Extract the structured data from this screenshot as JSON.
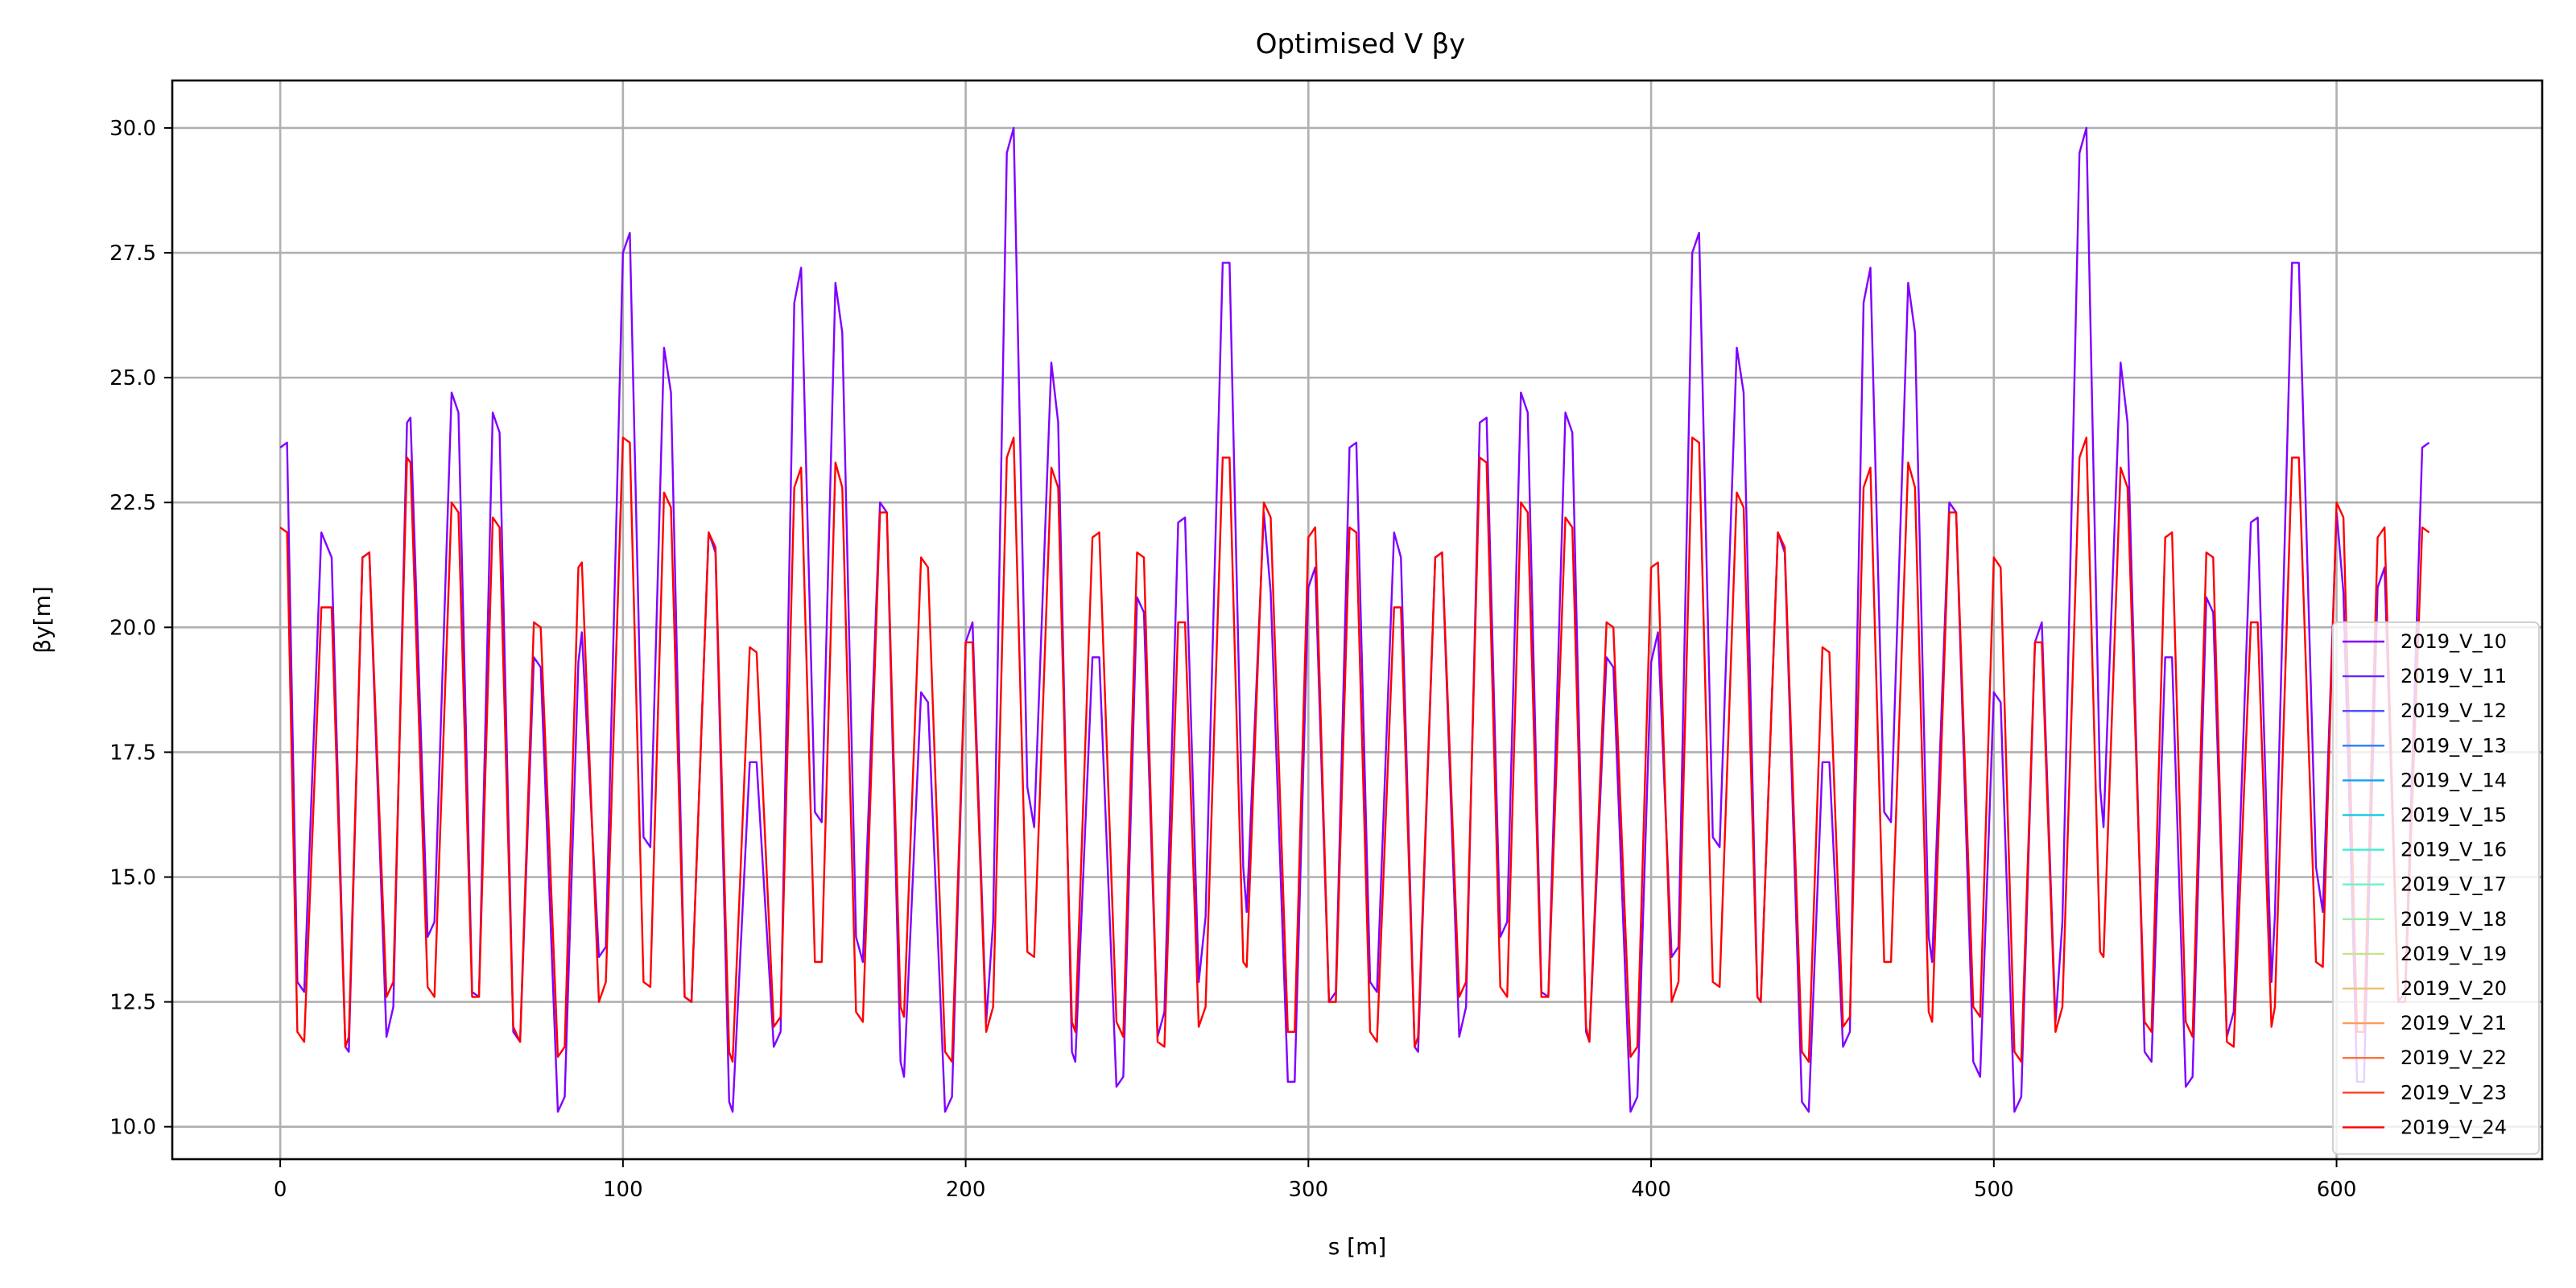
{
  "chart_data": {
    "type": "line",
    "title": "Optimised V βy",
    "xlabel": "s [m]",
    "ylabel": "βy[m]",
    "xlim": [
      -31.5,
      660
    ],
    "ylim": [
      9.35,
      30.95
    ],
    "xticks": [
      0,
      100,
      200,
      300,
      400,
      500,
      600
    ],
    "yticks": [
      10.0,
      12.5,
      15.0,
      17.5,
      20.0,
      22.5,
      25.0,
      27.5,
      30.0
    ],
    "grid": true,
    "legend_position": "lower-right",
    "x": [
      0,
      2,
      5,
      7,
      12,
      15,
      19,
      20,
      24,
      26,
      31,
      33,
      37,
      38,
      43,
      45,
      50,
      52,
      56,
      58,
      62,
      64,
      68,
      70,
      74,
      76,
      81,
      83,
      87,
      88,
      93,
      95,
      100,
      102,
      106,
      108,
      112,
      114,
      118,
      120,
      125,
      127,
      131,
      132,
      137,
      139,
      144,
      146,
      150,
      152,
      156,
      158,
      162,
      164,
      168,
      170,
      175,
      177,
      181,
      182,
      187,
      189,
      194,
      196,
      200,
      202,
      206,
      208,
      212,
      214,
      218,
      220,
      225,
      227,
      231,
      232,
      237,
      239,
      244,
      246,
      250,
      252,
      256,
      258,
      262,
      264,
      268,
      270,
      275,
      277,
      281,
      282,
      287,
      289,
      294,
      296,
      300,
      302,
      306,
      308,
      312,
      314,
      318,
      320,
      325,
      327,
      331,
      332,
      337,
      339,
      344,
      346,
      350,
      352,
      356,
      358,
      362,
      364,
      368,
      370,
      375,
      377,
      381,
      382,
      387,
      389,
      394,
      396,
      400,
      402,
      406,
      408,
      412,
      414,
      418,
      420,
      425,
      427,
      431,
      432,
      437,
      439,
      444,
      446,
      450,
      452,
      456,
      458,
      462,
      464,
      468,
      470,
      475,
      477,
      481,
      482,
      487,
      489,
      494,
      496,
      500,
      502,
      506,
      508,
      512,
      514,
      518,
      520,
      525,
      527,
      531,
      532,
      537,
      539,
      544,
      546,
      550,
      552,
      556,
      558,
      562,
      564,
      568,
      570,
      575,
      577,
      581,
      582,
      587,
      589,
      594,
      596,
      600,
      602,
      606,
      608,
      612,
      614,
      618,
      620,
      625,
      627
    ],
    "series": [
      {
        "name": "2019_V_10",
        "color": "#8000ff",
        "values": [
          23.6,
          23.7,
          12.9,
          12.7,
          21.9,
          21.4,
          11.6,
          11.5,
          21.4,
          21.5,
          11.8,
          12.4,
          24.1,
          24.2,
          13.8,
          14.1,
          24.7,
          24.3,
          12.7,
          12.6,
          24.3,
          23.9,
          11.9,
          11.7,
          19.4,
          19.2,
          10.3,
          10.6,
          19.3,
          19.9,
          13.4,
          13.6,
          27.5,
          27.9,
          15.8,
          15.6,
          25.6,
          24.7,
          12.6,
          12.5,
          21.9,
          21.5,
          10.5,
          10.3,
          17.3,
          17.3,
          11.6,
          11.9,
          26.5,
          27.2,
          16.3,
          16.1,
          26.9,
          25.9,
          13.8,
          13.3,
          22.5,
          22.3,
          11.3,
          11.0,
          18.7,
          18.5,
          10.3,
          10.6,
          19.7,
          20.1,
          12.1,
          14.1,
          29.5,
          30.0,
          16.8,
          16.0,
          25.3,
          24.1,
          11.5,
          11.3,
          19.4,
          19.4,
          10.8,
          11.0,
          20.6,
          20.3,
          11.8,
          12.3,
          22.1,
          22.2,
          12.9,
          14.2,
          27.3,
          27.3,
          15.2,
          14.3,
          22.3,
          20.7,
          10.9,
          10.9,
          20.8,
          21.2,
          12.5,
          12.7,
          23.6,
          23.7,
          12.9,
          12.7,
          21.9,
          21.4,
          11.6,
          11.5,
          21.4,
          21.5,
          11.8,
          12.4,
          24.1,
          24.2,
          13.8,
          14.1,
          24.7,
          24.3,
          12.7,
          12.6,
          24.3,
          23.9,
          11.9,
          11.7,
          19.4,
          19.2,
          10.3,
          10.6,
          19.3,
          19.9,
          13.4,
          13.6,
          27.5,
          27.9,
          15.8,
          15.6,
          25.6,
          24.7,
          12.6,
          12.5,
          21.9,
          21.5,
          10.5,
          10.3,
          17.3,
          17.3,
          11.6,
          11.9,
          26.5,
          27.2,
          16.3,
          16.1,
          26.9,
          25.9,
          13.8,
          13.3,
          22.5,
          22.3,
          11.3,
          11.0,
          18.7,
          18.5,
          10.3,
          10.6,
          19.7,
          20.1,
          12.1,
          14.1,
          29.5,
          30.0,
          16.8,
          16.0,
          25.3,
          24.1,
          11.5,
          11.3,
          19.4,
          19.4,
          10.8,
          11.0,
          20.6,
          20.3,
          11.8,
          12.3,
          22.1,
          22.2,
          12.9,
          14.2,
          27.3,
          27.3,
          15.2,
          14.3,
          22.3,
          20.7,
          10.9,
          10.9,
          20.8,
          21.2,
          12.5,
          12.7,
          23.6,
          23.7
        ]
      },
      {
        "name": "2019_V_24",
        "color": "#ff0000",
        "values": [
          22.0,
          21.9,
          11.9,
          11.7,
          20.4,
          20.4,
          11.6,
          11.8,
          21.4,
          21.5,
          12.6,
          12.9,
          23.4,
          23.3,
          12.8,
          12.6,
          22.5,
          22.3,
          12.6,
          12.6,
          22.2,
          22.0,
          12.0,
          11.7,
          20.1,
          20.0,
          11.4,
          11.6,
          21.2,
          21.3,
          12.5,
          12.9,
          23.8,
          23.7,
          12.9,
          12.8,
          22.7,
          22.4,
          12.6,
          12.5,
          21.9,
          21.6,
          11.5,
          11.3,
          19.6,
          19.5,
          12.0,
          12.2,
          22.8,
          23.2,
          13.3,
          13.3,
          23.3,
          22.8,
          12.3,
          12.1,
          22.3,
          22.3,
          12.4,
          12.2,
          21.4,
          21.2,
          11.5,
          11.3,
          19.7,
          19.7,
          11.9,
          12.4,
          23.4,
          23.8,
          13.5,
          13.4,
          23.2,
          22.8,
          12.1,
          11.9,
          21.8,
          21.9,
          12.1,
          11.8,
          21.5,
          21.4,
          11.7,
          11.6,
          20.1,
          20.1,
          12.0,
          12.4,
          23.4,
          23.4,
          13.3,
          13.2,
          22.5,
          22.2,
          11.9,
          11.9,
          21.8,
          22.0,
          12.5,
          12.5,
          22.0,
          21.9,
          11.9,
          11.7,
          20.4,
          20.4,
          11.6,
          11.8,
          21.4,
          21.5,
          12.6,
          12.9,
          23.4,
          23.3,
          12.8,
          12.6,
          22.5,
          22.3,
          12.6,
          12.6,
          22.2,
          22.0,
          12.0,
          11.7,
          20.1,
          20.0,
          11.4,
          11.6,
          21.2,
          21.3,
          12.5,
          12.9,
          23.8,
          23.7,
          12.9,
          12.8,
          22.7,
          22.4,
          12.6,
          12.5,
          21.9,
          21.6,
          11.5,
          11.3,
          19.6,
          19.5,
          12.0,
          12.2,
          22.8,
          23.2,
          13.3,
          13.3,
          23.3,
          22.8,
          12.3,
          12.1,
          22.3,
          22.3,
          12.4,
          12.2,
          21.4,
          21.2,
          11.5,
          11.3,
          19.7,
          19.7,
          11.9,
          12.4,
          23.4,
          23.8,
          13.5,
          13.4,
          23.2,
          22.8,
          12.1,
          11.9,
          21.8,
          21.9,
          12.1,
          11.8,
          21.5,
          21.4,
          11.7,
          11.6,
          20.1,
          20.1,
          12.0,
          12.4,
          23.4,
          23.4,
          13.3,
          13.2,
          22.5,
          22.2,
          11.9,
          11.9,
          21.8,
          22.0,
          12.5,
          12.5,
          22.0,
          21.9
        ]
      }
    ],
    "legend": [
      {
        "name": "2019_V_10",
        "color": "#8000ff"
      },
      {
        "name": "2019_V_11",
        "color": "#6629fe"
      },
      {
        "name": "2019_V_12",
        "color": "#4c50fc"
      },
      {
        "name": "2019_V_13",
        "color": "#2c7ef7"
      },
      {
        "name": "2019_V_14",
        "color": "#12a4f0"
      },
      {
        "name": "2019_V_15",
        "color": "#1acce4"
      },
      {
        "name": "2019_V_16",
        "color": "#40ecd4"
      },
      {
        "name": "2019_V_17",
        "color": "#66f6c2"
      },
      {
        "name": "2019_V_18",
        "color": "#9cf0a9"
      },
      {
        "name": "2019_V_19",
        "color": "#c4e48e"
      },
      {
        "name": "2019_V_20",
        "color": "#ecc072"
      },
      {
        "name": "2019_V_21",
        "color": "#ff9c58"
      },
      {
        "name": "2019_V_22",
        "color": "#ff703f"
      },
      {
        "name": "2019_V_23",
        "color": "#ff3f20"
      },
      {
        "name": "2019_V_24",
        "color": "#ff0000"
      }
    ]
  }
}
